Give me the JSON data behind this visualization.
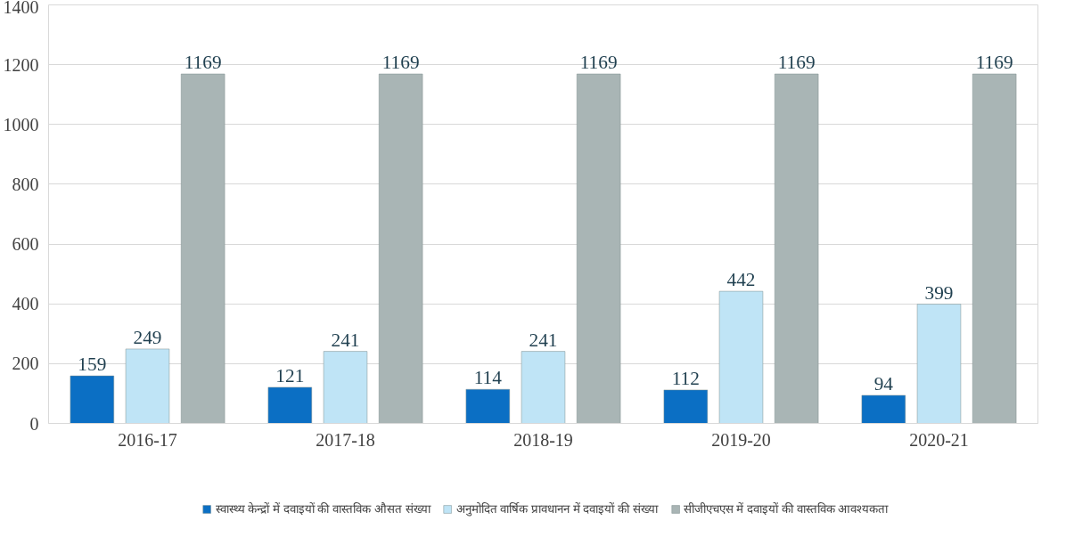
{
  "chart_data": {
    "type": "bar",
    "categories": [
      "2016-17",
      "2017-18",
      "2018-19",
      "2019-20",
      "2020-21"
    ],
    "series": [
      {
        "name": "स्वास्थ्य केन्द्रों में दवाइयों की वास्तविक औसत संख्या",
        "color": "#0b6fc4",
        "values": [
          159,
          121,
          114,
          112,
          94
        ]
      },
      {
        "name": "अनुमोदित वार्षिक प्रावधानन में दवाइयों की संख्या",
        "color": "#bfe4f6",
        "values": [
          249,
          241,
          241,
          442,
          399
        ]
      },
      {
        "name": "सीजीएचएस में दवाइयों की वास्तविक आवश्यकता",
        "color": "#a9b5b5",
        "values": [
          1169,
          1169,
          1169,
          1169,
          1169
        ]
      }
    ],
    "ylim": [
      0,
      1400
    ],
    "yticks": [
      0,
      200,
      400,
      600,
      800,
      1000,
      1200,
      1400
    ],
    "grid": "y",
    "legend": "bottom",
    "data_labels": true
  }
}
